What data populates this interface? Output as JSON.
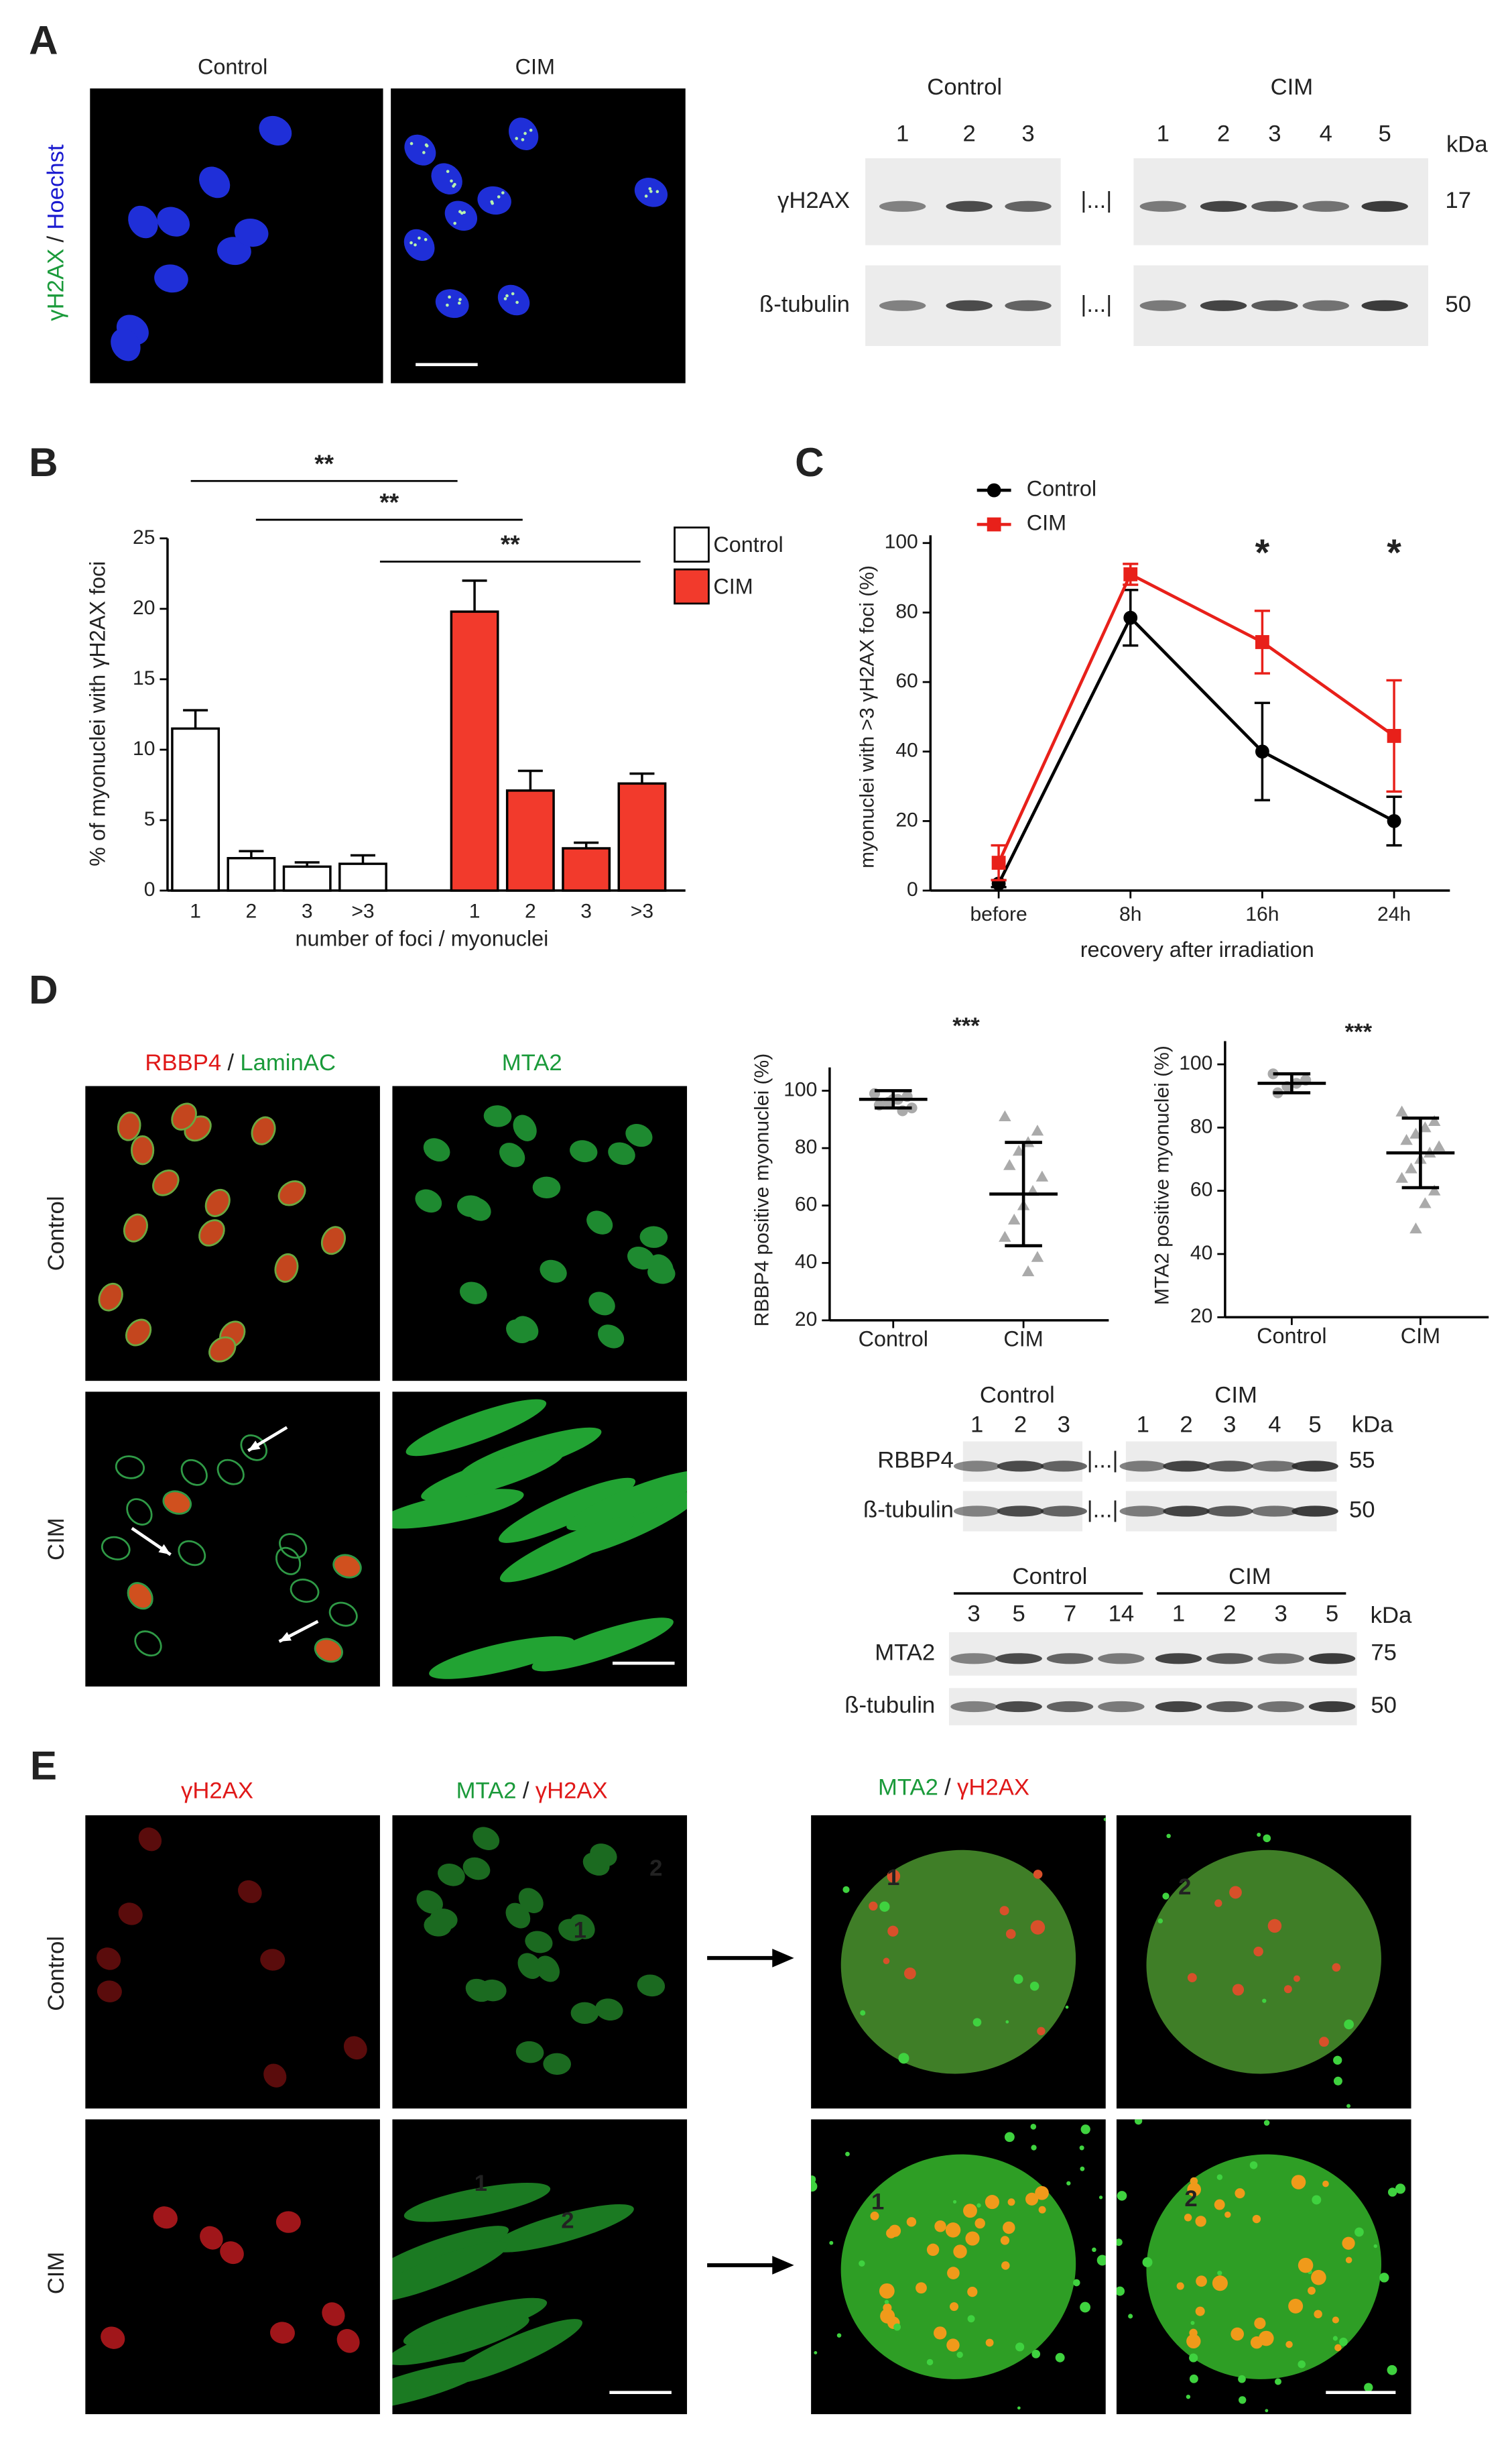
{
  "panel_labels": [
    "A",
    "B",
    "C",
    "D",
    "E"
  ],
  "panel_a": {
    "image_titles": [
      "Control",
      "CIM"
    ],
    "stain": [
      "γH2AX",
      "/",
      "Hoechst"
    ],
    "blot": {
      "groups": [
        "Control",
        "CIM"
      ],
      "lanes": [
        [
          "1",
          "2",
          "3"
        ],
        [
          "1",
          "2",
          "3",
          "4",
          "5"
        ]
      ],
      "unit": "kDa",
      "separator": "|...|",
      "rows": [
        {
          "name": "γH2AX",
          "kda": 17
        },
        {
          "name": "ß-tubulin",
          "kda": 50
        }
      ]
    }
  },
  "chart_data": [
    {
      "type": "bar",
      "y_label": "% of myonuclei with γH2AX foci",
      "x_label": "number of foci / myonuclei",
      "categories": [
        "1",
        "2",
        "3",
        ">3",
        "1",
        "2",
        "3",
        ">3"
      ],
      "series": [
        {
          "name": "Control",
          "color": "#ffffff",
          "values": [
            11.5,
            2.3,
            1.7,
            1.9,
            null,
            null,
            null,
            null
          ],
          "errors": [
            1.3,
            0.5,
            0.3,
            0.6,
            null,
            null,
            null,
            null
          ]
        },
        {
          "name": "CIM",
          "color": "#f23a2c",
          "values": [
            null,
            null,
            null,
            null,
            19.8,
            7.1,
            3.0,
            7.6
          ],
          "errors": [
            null,
            null,
            null,
            null,
            2.2,
            1.4,
            0.4,
            0.7
          ]
        }
      ],
      "ylim": [
        0,
        25
      ],
      "yticks": [
        0,
        5,
        10,
        15,
        20,
        25
      ],
      "legend": "upper right",
      "annotations": [
        "**",
        "**",
        "**"
      ]
    },
    {
      "type": "line",
      "y_label": "myonuclei with >3 γH2AX foci (%)",
      "x_label": "recovery after irradiation",
      "categories": [
        "before",
        "8h",
        "16h",
        "24h"
      ],
      "series": [
        {
          "name": "Control",
          "color": "#000000",
          "values": [
            2,
            78.5,
            40,
            20
          ],
          "errors": [
            1,
            8,
            14,
            7
          ]
        },
        {
          "name": "CIM",
          "color": "#e8201a",
          "values": [
            8,
            91,
            71.5,
            44.5
          ],
          "errors": [
            5,
            3,
            9,
            16
          ]
        }
      ],
      "ylim": [
        0,
        100
      ],
      "yticks": [
        0,
        20,
        40,
        60,
        80,
        100
      ],
      "legend": "upper left",
      "annotations": [
        "*",
        "*"
      ]
    },
    {
      "type": "dot",
      "title": "***",
      "y_label": "RBBP4 positive myonuclei (%)",
      "categories": [
        "Control",
        "CIM"
      ],
      "groups": [
        {
          "values": [
            99,
            98,
            97,
            96,
            95,
            94,
            93,
            97
          ],
          "mean": 97,
          "sd": 3
        },
        {
          "values": [
            91,
            86,
            82,
            79,
            74,
            70,
            65,
            60,
            55,
            49,
            42,
            37
          ],
          "mean": 64,
          "sd": 18
        }
      ],
      "color": "#aaaaaa",
      "ylim": [
        20,
        100
      ],
      "yticks": [
        20,
        40,
        60,
        80,
        100
      ]
    },
    {
      "type": "dot",
      "title": "***",
      "y_label": "MTA2 positive myonuclei (%)",
      "categories": [
        "Control",
        "CIM"
      ],
      "groups": [
        {
          "values": [
            97,
            95,
            94,
            93,
            91
          ],
          "mean": 94,
          "sd": 3
        },
        {
          "values": [
            85,
            82,
            80,
            78,
            76,
            74,
            72,
            70,
            67,
            64,
            60,
            56,
            48
          ],
          "mean": 72,
          "sd": 11
        }
      ],
      "color": "#aaaaaa",
      "ylim": [
        20,
        100
      ],
      "yticks": [
        20,
        40,
        60,
        80,
        100
      ]
    }
  ],
  "panel_d": {
    "stains": [
      [
        "RBBP4",
        "/",
        "LaminAC"
      ],
      [
        "MTA2"
      ]
    ],
    "rows": [
      "Control",
      "CIM"
    ],
    "blot_rbbp4": {
      "groups": [
        "Control",
        "CIM"
      ],
      "lanes": [
        [
          "1",
          "2",
          "3"
        ],
        [
          "1",
          "2",
          "3",
          "4",
          "5"
        ]
      ],
      "unit": "kDa",
      "separator": "|...|",
      "rows": [
        {
          "name": "RBBP4",
          "kda": 55
        },
        {
          "name": "ß-tubulin",
          "kda": 50
        }
      ]
    },
    "blot_mta2": {
      "groups": [
        "Control",
        "CIM"
      ],
      "lanes": [
        [
          "3",
          "5",
          "7",
          "14"
        ],
        [
          "1",
          "2",
          "3",
          "5"
        ]
      ],
      "unit": "kDa",
      "rows": [
        {
          "name": "MTA2",
          "kda": 75
        },
        {
          "name": "ß-tubulin",
          "kda": 50
        }
      ]
    }
  },
  "panel_e": {
    "columns": [
      [
        "γH2AX"
      ],
      [
        "MTA2",
        "/",
        "γH2AX"
      ],
      [
        "MTA2",
        "/",
        "γH2AX"
      ]
    ],
    "rows": [
      "Control",
      "CIM"
    ],
    "nuclei": [
      "1",
      "2"
    ]
  }
}
